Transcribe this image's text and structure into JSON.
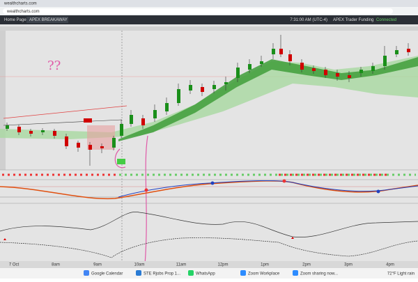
{
  "browser": {
    "tab": "wealthcharts.com",
    "url": "wealthcharts.com"
  },
  "toolbar": {
    "home": "Home Page",
    "workspace": "APEX BREAKAWAY",
    "clock": "7:31:00 AM (UTC-4)",
    "account": "APEX Trader Funding",
    "status": "Connected"
  },
  "annotation": "??",
  "time_axis": [
    "7 Oct",
    "8am",
    "9am",
    "10am",
    "11am",
    "12pm",
    "1pm",
    "2pm",
    "3pm",
    "4pm"
  ],
  "taskbar": {
    "apps": [
      "Google Calendar",
      "STE Rjobs Prop 1...",
      "WhatsApp",
      "Zoom Workplace",
      "Zoom sharing now..."
    ],
    "weather": "72°F Light rain"
  }
}
